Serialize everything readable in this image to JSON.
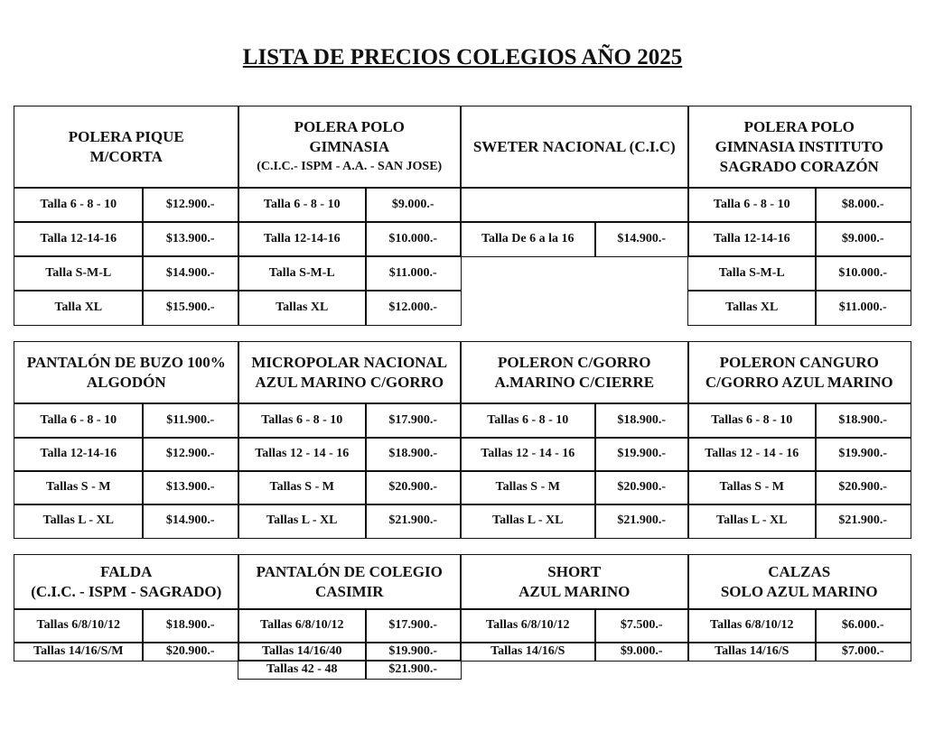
{
  "title": "LISTA DE PRECIOS COLEGIOS AÑO 2025",
  "blocks": [
    {
      "products": [
        {
          "name": [
            "POLERA PIQUE",
            "M/CORTA"
          ],
          "rows": [
            [
              "Talla 6 - 8 - 10",
              "$12.900.-"
            ],
            [
              "Talla 12-14-16",
              "$13.900.-"
            ],
            [
              "Talla S-M-L",
              "$14.900.-"
            ],
            [
              "Talla  XL",
              "$15.900.-"
            ]
          ]
        },
        {
          "name": [
            "POLERA POLO",
            "GIMNASIA"
          ],
          "sub": "(C.I.C.- ISPM - A.A. - SAN JOSE)",
          "rows": [
            [
              "Talla 6 - 8 - 10",
              "$9.000.-"
            ],
            [
              "Talla 12-14-16",
              "$10.000.-"
            ],
            [
              "Talla S-M-L",
              "$11.000.-"
            ],
            [
              "Tallas XL",
              "$12.000.-"
            ]
          ]
        },
        {
          "name": [
            "SWETER NACIONAL (C.I.C)"
          ],
          "special": true,
          "rows": [
            [
              "Talla De 6 a la 16",
              "$14.900.-"
            ]
          ]
        },
        {
          "name": [
            "POLERA POLO",
            "GIMNASIA INSTITUTO",
            "SAGRADO CORAZÓN"
          ],
          "rows": [
            [
              "Talla 6 - 8 - 10",
              "$8.000.-"
            ],
            [
              "Talla 12-14-16",
              "$9.000.-"
            ],
            [
              "Talla S-M-L",
              "$10.000.-"
            ],
            [
              "Tallas XL",
              "$11.000.-"
            ]
          ]
        }
      ]
    },
    {
      "products": [
        {
          "name": [
            "PANTALÓN DE BUZO 100%",
            "ALGODÓN"
          ],
          "rows": [
            [
              "Talla 6 - 8 - 10",
              "$11.900.-"
            ],
            [
              "Talla 12-14-16",
              "$12.900.-"
            ],
            [
              "Tallas S - M",
              "$13.900.-"
            ],
            [
              "Tallas  L - XL",
              "$14.900.-"
            ]
          ]
        },
        {
          "name": [
            "MICROPOLAR NACIONAL",
            "AZUL MARINO C/GORRO"
          ],
          "rows": [
            [
              "Tallas 6 - 8 - 10",
              "$17.900.-"
            ],
            [
              "Tallas 12 - 14 - 16",
              "$18.900.-"
            ],
            [
              "Tallas S - M",
              "$20.900.-"
            ],
            [
              "Tallas  L - XL",
              "$21.900.-"
            ]
          ]
        },
        {
          "name": [
            "POLERON C/GORRO",
            "A.MARINO C/CIERRE"
          ],
          "rows": [
            [
              "Tallas 6 - 8 - 10",
              "$18.900.-"
            ],
            [
              "Tallas 12 - 14 - 16",
              "$19.900.-"
            ],
            [
              "Tallas S - M",
              "$20.900.-"
            ],
            [
              "Tallas  L - XL",
              "$21.900.-"
            ]
          ]
        },
        {
          "name": [
            "POLERON CANGURO",
            "C/GORRO AZUL MARINO"
          ],
          "rows": [
            [
              "Tallas 6 - 8 - 10",
              "$18.900.-"
            ],
            [
              "Tallas 12 - 14 - 16",
              "$19.900.-"
            ],
            [
              "Tallas S - M",
              "$20.900.-"
            ],
            [
              "Tallas  L - XL",
              "$21.900.-"
            ]
          ]
        }
      ]
    },
    {
      "products": [
        {
          "name": [
            "FALDA",
            "(C.I.C. - ISPM - SAGRADO)"
          ],
          "rows": [
            [
              "Tallas 6/8/10/12",
              "$18.900.-"
            ],
            [
              "Tallas 14/16/S/M",
              "$20.900.-"
            ]
          ]
        },
        {
          "name": [
            "PANTALÓN DE COLEGIO",
            "CASIMIR"
          ],
          "rows": [
            [
              "Tallas 6/8/10/12",
              "$17.900.-"
            ],
            [
              "Tallas 14/16/40",
              "$19.900.-"
            ],
            [
              "Tallas 42 - 48",
              "$21.900.-"
            ]
          ]
        },
        {
          "name": [
            "SHORT",
            "AZUL MARINO"
          ],
          "rows": [
            [
              "Tallas 6/8/10/12",
              "$7.500.-"
            ],
            [
              "Tallas 14/16/S",
              "$9.000.-"
            ]
          ]
        },
        {
          "name": [
            "CALZAS",
            "SOLO AZUL MARINO"
          ],
          "rows": [
            [
              "Tallas 6/8/10/12",
              "$6.000.-"
            ],
            [
              "Tallas 14/16/S",
              "$7.000.-"
            ]
          ]
        }
      ]
    }
  ]
}
